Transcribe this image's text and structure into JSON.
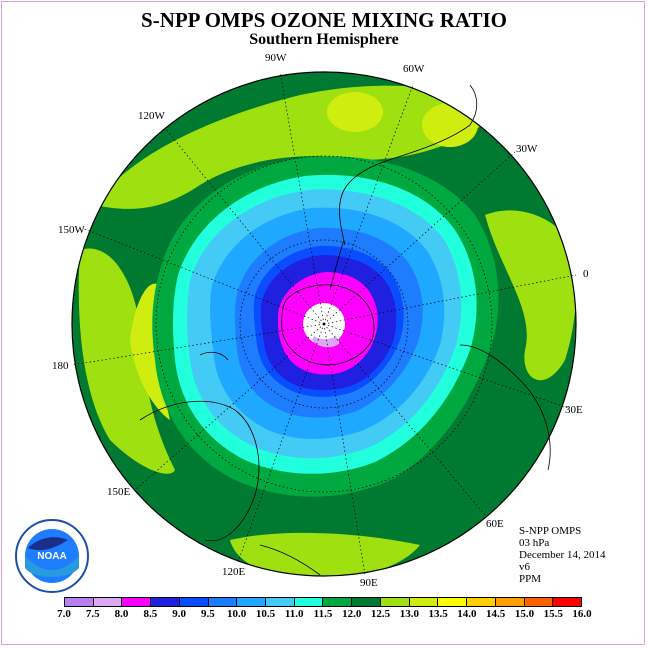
{
  "title": "S-NPP OMPS OZONE MIXING RATIO",
  "subtitle": "Southern Hemisphere",
  "longitude_labels": [
    {
      "text": "90W"
    },
    {
      "text": "60W"
    },
    {
      "text": "120W"
    },
    {
      "text": "30W"
    },
    {
      "text": "150W"
    },
    {
      "text": "0"
    },
    {
      "text": "180"
    },
    {
      "text": "30E"
    },
    {
      "text": "150E"
    },
    {
      "text": "60E"
    },
    {
      "text": "120E"
    },
    {
      "text": "90E"
    }
  ],
  "info": {
    "instrument": "S-NPP OMPS",
    "level": "03 hPa",
    "date": "December 14, 2014",
    "version": "v6",
    "units": "PPM"
  },
  "colorbar": {
    "ticks": [
      "7.0",
      "7.5",
      "8.0",
      "8.5",
      "9.0",
      "9.5",
      "10.0",
      "10.5",
      "11.0",
      "11.5",
      "12.0",
      "12.5",
      "13.0",
      "13.5",
      "14.0",
      "14.5",
      "15.0",
      "15.5",
      "16.0"
    ],
    "colors": [
      "#b87ff0",
      "#dca8f5",
      "#ff00ff",
      "#2020e0",
      "#0a4cff",
      "#1e7cff",
      "#1ea8ff",
      "#44cbf5",
      "#22ffdd",
      "#00a840",
      "#007a30",
      "#9ee010",
      "#cfee10",
      "#ffff00",
      "#ffd000",
      "#ffa000",
      "#ff6000",
      "#ff0000",
      "#a05a30"
    ]
  },
  "logo": {
    "text": "NOAA"
  },
  "map_colors": {
    "dark_green": "#007a30",
    "medium_green": "#00a840",
    "lime": "#9ee010",
    "light_lime": "#cfee10",
    "cyan": "#22ffdd",
    "light_blue": "#44cbf5",
    "sky_blue": "#1ea8ff",
    "mid_blue": "#1e7cff",
    "blue": "#0a4cff",
    "dark_blue": "#2020e0",
    "magenta": "#ff00ff",
    "pole": "#ffffff"
  }
}
